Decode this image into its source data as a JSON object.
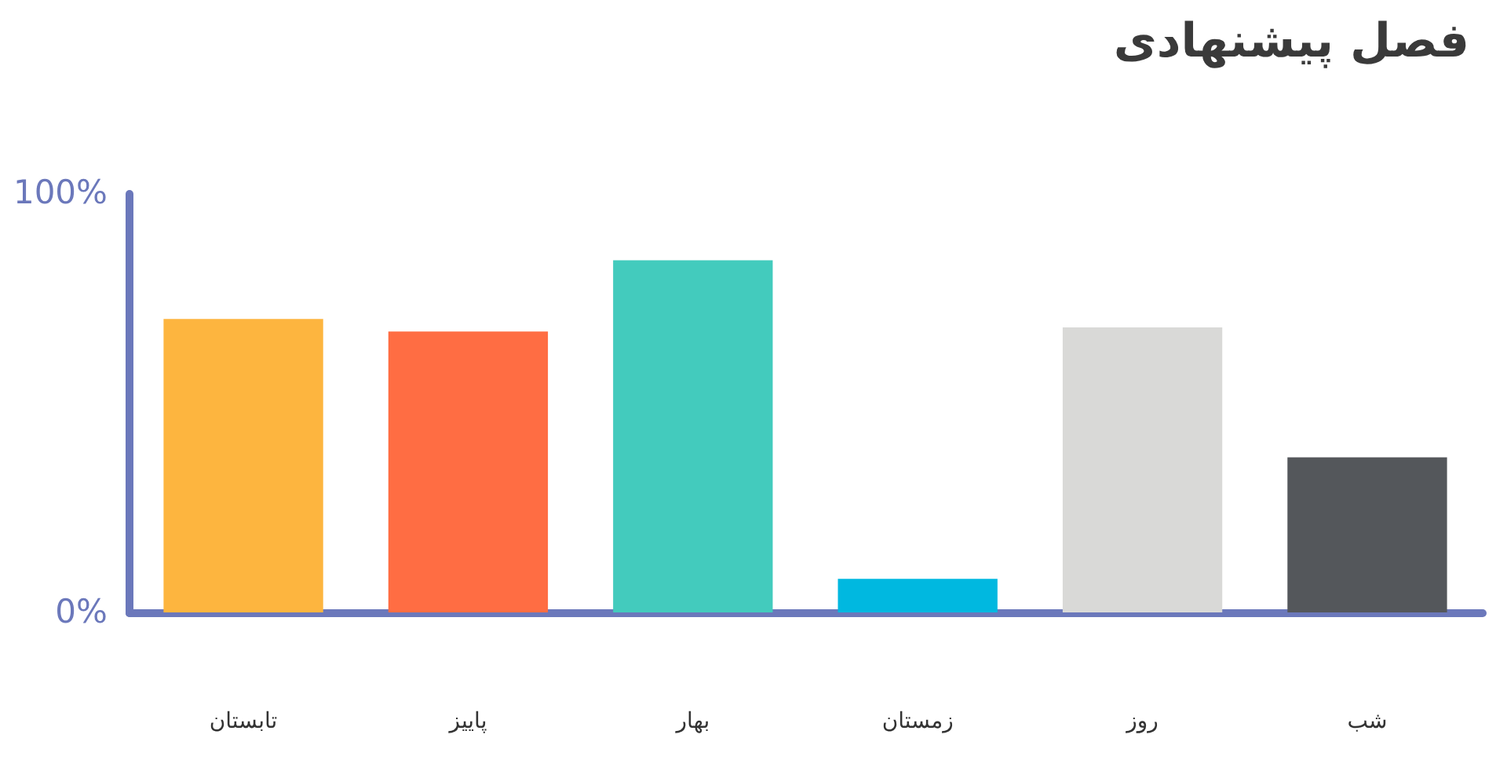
{
  "chart_data": {
    "type": "bar",
    "title": "فصل پیشنهادی",
    "categories": [
      "تابستان",
      "پاییز",
      "بهار",
      "زمستان",
      "روز",
      "شب"
    ],
    "values": [
      70,
      67,
      84,
      8,
      68,
      37
    ],
    "colors": [
      "#fdb53f",
      "#ff6d43",
      "#43cbbd",
      "#00b8e0",
      "#d9d9d7",
      "#54575b"
    ],
    "ylim": [
      0,
      100
    ],
    "yticks": [
      {
        "value": 0,
        "label": "0%"
      },
      {
        "value": 100,
        "label": "100%"
      }
    ],
    "grid": false,
    "legend": false
  }
}
